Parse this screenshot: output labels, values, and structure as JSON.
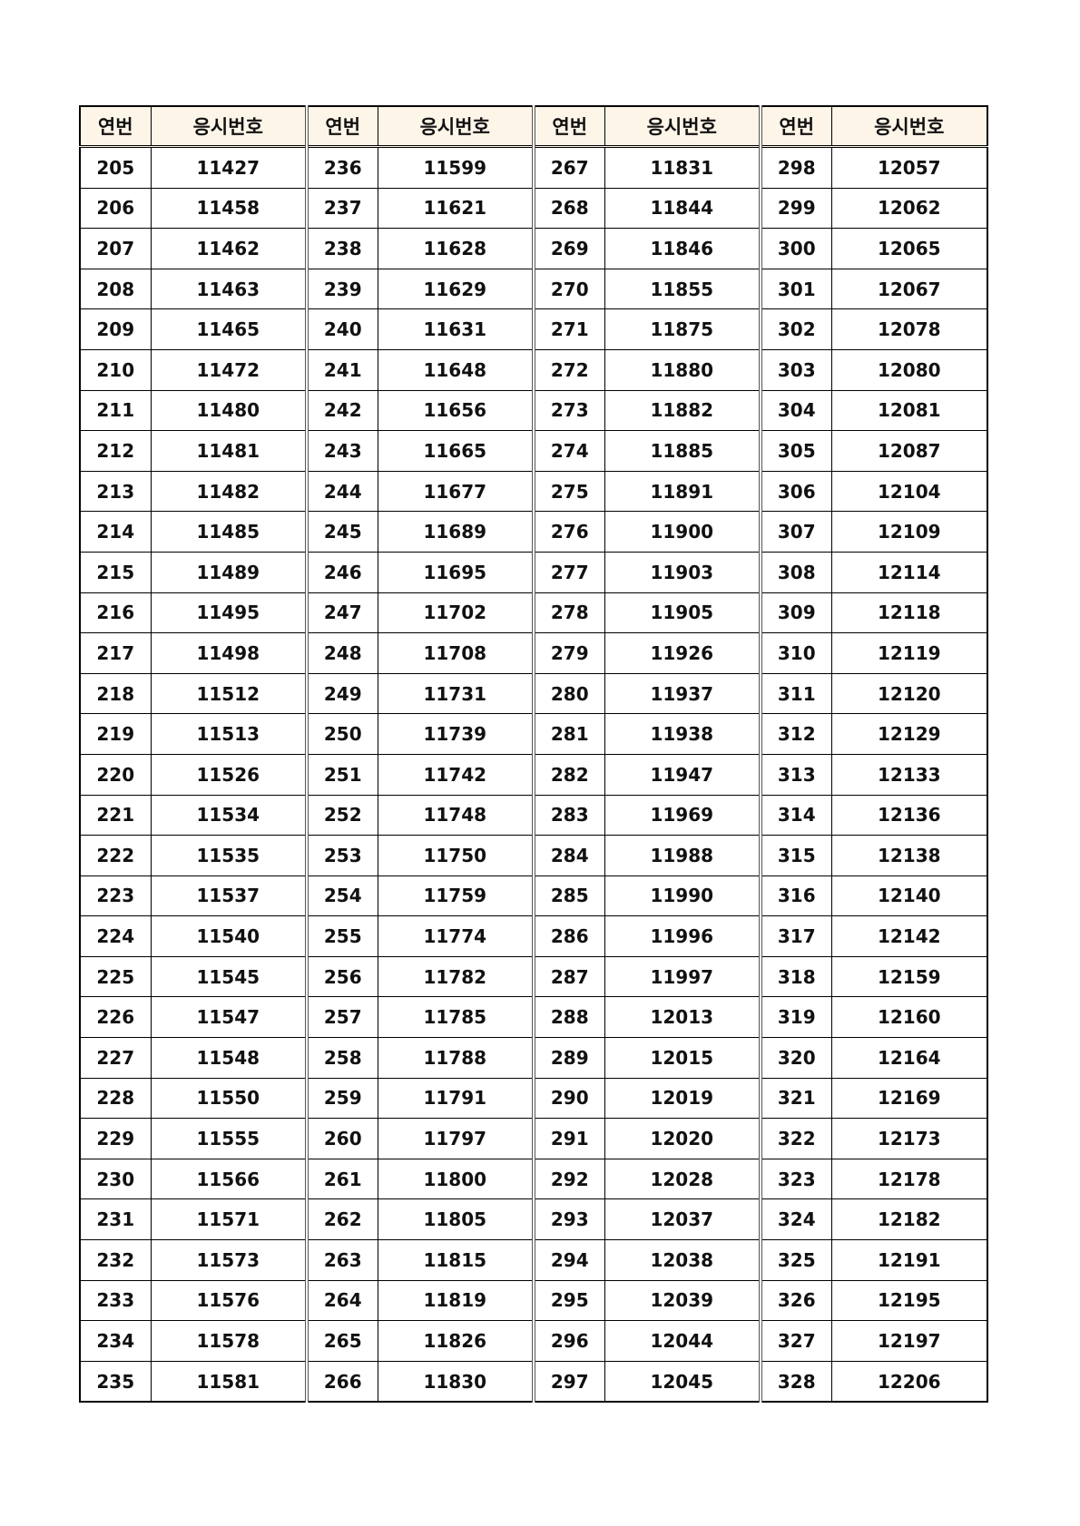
{
  "headers": {
    "seq": "연번",
    "exam_no": "응시번호"
  },
  "groups": [
    {
      "rows": [
        [
          205,
          11427
        ],
        [
          206,
          11458
        ],
        [
          207,
          11462
        ],
        [
          208,
          11463
        ],
        [
          209,
          11465
        ],
        [
          210,
          11472
        ],
        [
          211,
          11480
        ],
        [
          212,
          11481
        ],
        [
          213,
          11482
        ],
        [
          214,
          11485
        ],
        [
          215,
          11489
        ],
        [
          216,
          11495
        ],
        [
          217,
          11498
        ],
        [
          218,
          11512
        ],
        [
          219,
          11513
        ],
        [
          220,
          11526
        ],
        [
          221,
          11534
        ],
        [
          222,
          11535
        ],
        [
          223,
          11537
        ],
        [
          224,
          11540
        ],
        [
          225,
          11545
        ],
        [
          226,
          11547
        ],
        [
          227,
          11548
        ],
        [
          228,
          11550
        ],
        [
          229,
          11555
        ],
        [
          230,
          11566
        ],
        [
          231,
          11571
        ],
        [
          232,
          11573
        ],
        [
          233,
          11576
        ],
        [
          234,
          11578
        ],
        [
          235,
          11581
        ]
      ]
    },
    {
      "rows": [
        [
          236,
          11599
        ],
        [
          237,
          11621
        ],
        [
          238,
          11628
        ],
        [
          239,
          11629
        ],
        [
          240,
          11631
        ],
        [
          241,
          11648
        ],
        [
          242,
          11656
        ],
        [
          243,
          11665
        ],
        [
          244,
          11677
        ],
        [
          245,
          11689
        ],
        [
          246,
          11695
        ],
        [
          247,
          11702
        ],
        [
          248,
          11708
        ],
        [
          249,
          11731
        ],
        [
          250,
          11739
        ],
        [
          251,
          11742
        ],
        [
          252,
          11748
        ],
        [
          253,
          11750
        ],
        [
          254,
          11759
        ],
        [
          255,
          11774
        ],
        [
          256,
          11782
        ],
        [
          257,
          11785
        ],
        [
          258,
          11788
        ],
        [
          259,
          11791
        ],
        [
          260,
          11797
        ],
        [
          261,
          11800
        ],
        [
          262,
          11805
        ],
        [
          263,
          11815
        ],
        [
          264,
          11819
        ],
        [
          265,
          11826
        ],
        [
          266,
          11830
        ]
      ]
    },
    {
      "rows": [
        [
          267,
          11831
        ],
        [
          268,
          11844
        ],
        [
          269,
          11846
        ],
        [
          270,
          11855
        ],
        [
          271,
          11875
        ],
        [
          272,
          11880
        ],
        [
          273,
          11882
        ],
        [
          274,
          11885
        ],
        [
          275,
          11891
        ],
        [
          276,
          11900
        ],
        [
          277,
          11903
        ],
        [
          278,
          11905
        ],
        [
          279,
          11926
        ],
        [
          280,
          11937
        ],
        [
          281,
          11938
        ],
        [
          282,
          11947
        ],
        [
          283,
          11969
        ],
        [
          284,
          11988
        ],
        [
          285,
          11990
        ],
        [
          286,
          11996
        ],
        [
          287,
          11997
        ],
        [
          288,
          12013
        ],
        [
          289,
          12015
        ],
        [
          290,
          12019
        ],
        [
          291,
          12020
        ],
        [
          292,
          12028
        ],
        [
          293,
          12037
        ],
        [
          294,
          12038
        ],
        [
          295,
          12039
        ],
        [
          296,
          12044
        ],
        [
          297,
          12045
        ]
      ]
    },
    {
      "rows": [
        [
          298,
          12057
        ],
        [
          299,
          12062
        ],
        [
          300,
          12065
        ],
        [
          301,
          12067
        ],
        [
          302,
          12078
        ],
        [
          303,
          12080
        ],
        [
          304,
          12081
        ],
        [
          305,
          12087
        ],
        [
          306,
          12104
        ],
        [
          307,
          12109
        ],
        [
          308,
          12114
        ],
        [
          309,
          12118
        ],
        [
          310,
          12119
        ],
        [
          311,
          12120
        ],
        [
          312,
          12129
        ],
        [
          313,
          12133
        ],
        [
          314,
          12136
        ],
        [
          315,
          12138
        ],
        [
          316,
          12140
        ],
        [
          317,
          12142
        ],
        [
          318,
          12159
        ],
        [
          319,
          12160
        ],
        [
          320,
          12164
        ],
        [
          321,
          12169
        ],
        [
          322,
          12173
        ],
        [
          323,
          12178
        ],
        [
          324,
          12182
        ],
        [
          325,
          12191
        ],
        [
          326,
          12195
        ],
        [
          327,
          12197
        ],
        [
          328,
          12206
        ]
      ]
    }
  ],
  "colors": {
    "header_bg": "#fdf5e8",
    "border": "#000000"
  }
}
